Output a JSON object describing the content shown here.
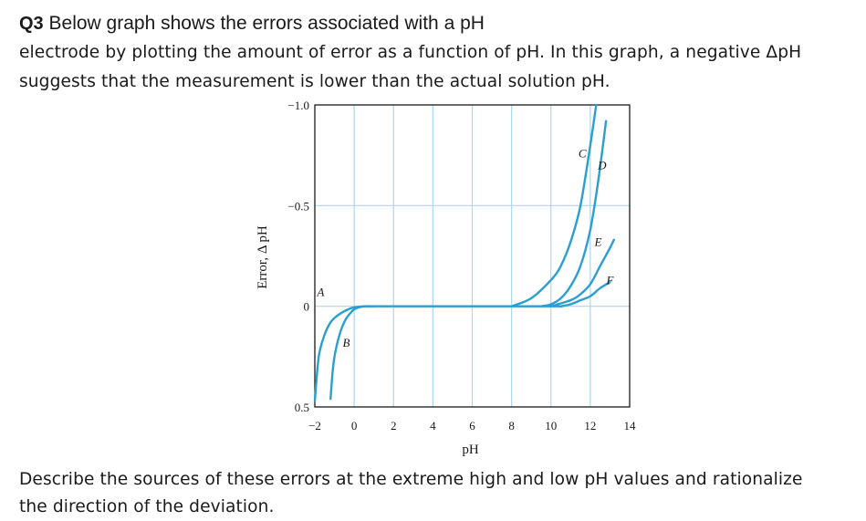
{
  "question": {
    "number": "Q3",
    "line1_rest": " Below graph shows the errors associated with a pH",
    "line2": "electrode by plotting the amount of error as a function of pH. In this graph, a negative ΔpH",
    "line3": "suggests that the measurement is lower than the actual solution pH.",
    "line4": "Describe the sources of these errors at the extreme high and low pH values and rationalize",
    "line5": "the direction of the deviation."
  },
  "chart_data": {
    "type": "line",
    "xlabel": "pH",
    "ylabel": "Error, Δ pH",
    "xlim": [
      -2,
      14
    ],
    "ylim": [
      0.5,
      -1.0
    ],
    "x_ticks": [
      -2,
      0,
      2,
      4,
      6,
      8,
      10,
      12,
      14
    ],
    "y_ticks": [
      "-1.0",
      "-0.5",
      "0",
      "0.5"
    ],
    "grid": true,
    "line_color": "#2a9fd0",
    "grid_color": "#aad8ee",
    "series": [
      {
        "name": "A",
        "x": [
          -2,
          -1.8,
          -1.5,
          -1.2,
          -0.9,
          -0.6,
          -0.3,
          0,
          0.5,
          1
        ],
        "y": [
          0.47,
          0.25,
          0.14,
          0.08,
          0.05,
          0.03,
          0.015,
          0.005,
          0,
          0
        ]
      },
      {
        "name": "B",
        "x": [
          -1.2,
          -1.1,
          -1.0,
          -0.8,
          -0.6,
          -0.4,
          -0.2,
          0,
          0.3,
          0.6
        ],
        "y": [
          0.46,
          0.33,
          0.25,
          0.16,
          0.1,
          0.06,
          0.035,
          0.015,
          0.004,
          0
        ]
      },
      {
        "name": "C",
        "x": [
          8,
          9,
          10,
          10.5,
          11,
          11.5,
          12,
          12.3
        ],
        "y": [
          0,
          -0.04,
          -0.13,
          -0.2,
          -0.32,
          -0.5,
          -0.8,
          -1.0
        ]
      },
      {
        "name": "D",
        "x": [
          9.5,
          10,
          10.5,
          11,
          11.5,
          12,
          12.4,
          12.8
        ],
        "y": [
          0,
          -0.01,
          -0.04,
          -0.1,
          -0.2,
          -0.38,
          -0.62,
          -0.92
        ]
      },
      {
        "name": "E",
        "x": [
          10,
          11,
          11.5,
          12,
          12.5,
          13,
          13.2
        ],
        "y": [
          0,
          -0.03,
          -0.06,
          -0.11,
          -0.2,
          -0.29,
          -0.33
        ]
      },
      {
        "name": "F",
        "x": [
          10.5,
          11,
          11.5,
          12,
          12.5,
          13
        ],
        "y": [
          0,
          -0.01,
          -0.03,
          -0.05,
          -0.09,
          -0.12
        ]
      }
    ],
    "line_labels": [
      {
        "text": "A",
        "x": -1.7,
        "y": -0.05
      },
      {
        "text": "B",
        "x": -0.4,
        "y": 0.2
      },
      {
        "text": "C",
        "x": 11.6,
        "y": -0.74
      },
      {
        "text": "D",
        "x": 12.6,
        "y": -0.68
      },
      {
        "text": "E",
        "x": 12.4,
        "y": -0.3
      },
      {
        "text": "F",
        "x": 13.0,
        "y": -0.11
      }
    ]
  }
}
